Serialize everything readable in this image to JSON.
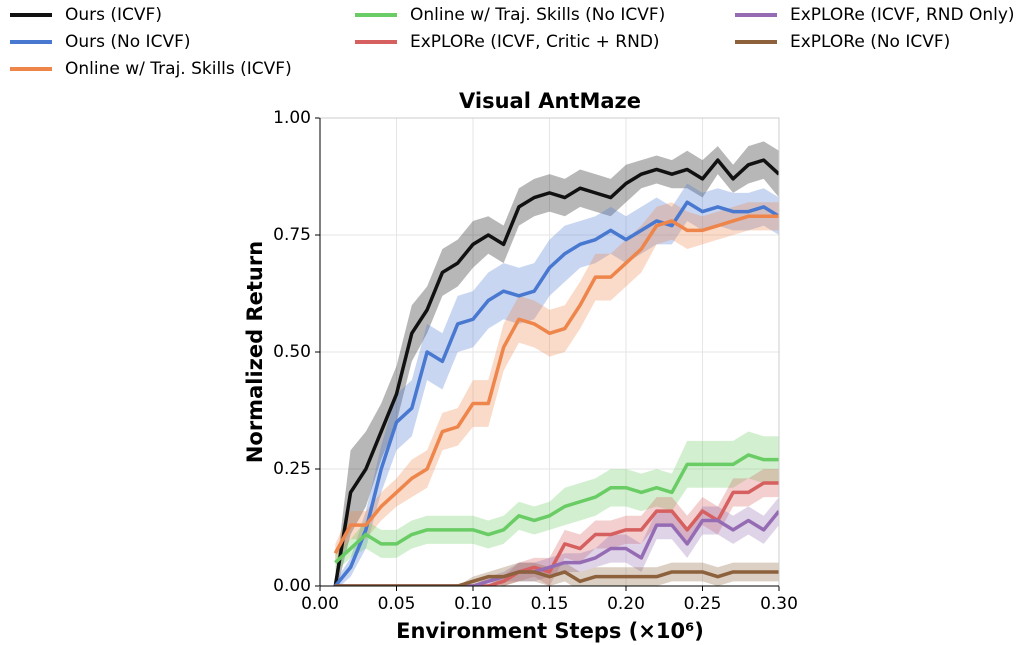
{
  "chart_data": {
    "type": "line",
    "title": "Visual AntMaze",
    "xlabel": "Environment Steps (×10⁶)",
    "ylabel": "Normalized Return",
    "x": [
      0.01,
      0.02,
      0.03,
      0.04,
      0.05,
      0.06,
      0.07,
      0.08,
      0.09,
      0.1,
      0.11,
      0.12,
      0.13,
      0.14,
      0.15,
      0.16,
      0.17,
      0.18,
      0.19,
      0.2,
      0.21,
      0.22,
      0.23,
      0.24,
      0.25,
      0.26,
      0.27,
      0.28,
      0.29,
      0.3
    ],
    "series": [
      {
        "name": "Ours (ICVF)",
        "color": "#111111",
        "values": [
          0.0,
          0.2,
          0.25,
          0.33,
          0.41,
          0.54,
          0.59,
          0.67,
          0.69,
          0.73,
          0.75,
          0.73,
          0.81,
          0.83,
          0.84,
          0.83,
          0.85,
          0.84,
          0.83,
          0.86,
          0.88,
          0.89,
          0.88,
          0.89,
          0.87,
          0.91,
          0.87,
          0.9,
          0.91,
          0.88
        ],
        "errors": [
          0.02,
          0.09,
          0.08,
          0.06,
          0.06,
          0.06,
          0.05,
          0.05,
          0.05,
          0.05,
          0.04,
          0.04,
          0.04,
          0.04,
          0.04,
          0.04,
          0.04,
          0.04,
          0.04,
          0.04,
          0.03,
          0.03,
          0.03,
          0.04,
          0.04,
          0.03,
          0.03,
          0.04,
          0.04,
          0.05
        ]
      },
      {
        "name": "Ours (No ICVF)",
        "color": "#4878d0",
        "values": [
          0.0,
          0.04,
          0.12,
          0.25,
          0.35,
          0.38,
          0.5,
          0.48,
          0.56,
          0.57,
          0.61,
          0.63,
          0.62,
          0.63,
          0.68,
          0.71,
          0.73,
          0.74,
          0.76,
          0.74,
          0.76,
          0.78,
          0.77,
          0.82,
          0.8,
          0.81,
          0.8,
          0.8,
          0.81,
          0.79
        ],
        "errors": [
          0.01,
          0.02,
          0.04,
          0.05,
          0.06,
          0.06,
          0.06,
          0.06,
          0.06,
          0.06,
          0.06,
          0.06,
          0.06,
          0.06,
          0.06,
          0.06,
          0.05,
          0.05,
          0.05,
          0.05,
          0.05,
          0.05,
          0.04,
          0.04,
          0.04,
          0.04,
          0.04,
          0.04,
          0.04,
          0.04
        ]
      },
      {
        "name": "Online w/ Traj. Skills (ICVF)",
        "color": "#ee854a",
        "values": [
          0.07,
          0.13,
          0.13,
          0.17,
          0.2,
          0.23,
          0.25,
          0.33,
          0.34,
          0.39,
          0.39,
          0.51,
          0.57,
          0.56,
          0.54,
          0.55,
          0.6,
          0.66,
          0.66,
          0.69,
          0.72,
          0.77,
          0.78,
          0.76,
          0.76,
          0.77,
          0.78,
          0.79,
          0.79,
          0.79
        ],
        "errors": [
          0.02,
          0.03,
          0.03,
          0.03,
          0.03,
          0.04,
          0.04,
          0.04,
          0.04,
          0.05,
          0.05,
          0.05,
          0.05,
          0.05,
          0.05,
          0.05,
          0.05,
          0.05,
          0.05,
          0.05,
          0.05,
          0.04,
          0.04,
          0.04,
          0.03,
          0.03,
          0.03,
          0.03,
          0.03,
          0.03
        ]
      },
      {
        "name": "Online w/ Traj. Skills (No ICVF)",
        "color": "#6acc64",
        "values": [
          0.05,
          0.08,
          0.11,
          0.09,
          0.09,
          0.11,
          0.12,
          0.12,
          0.12,
          0.12,
          0.11,
          0.12,
          0.15,
          0.14,
          0.15,
          0.17,
          0.18,
          0.19,
          0.21,
          0.21,
          0.2,
          0.21,
          0.2,
          0.26,
          0.26,
          0.26,
          0.26,
          0.28,
          0.27,
          0.27
        ],
        "errors": [
          0.02,
          0.02,
          0.03,
          0.03,
          0.03,
          0.03,
          0.03,
          0.03,
          0.03,
          0.03,
          0.03,
          0.03,
          0.03,
          0.03,
          0.03,
          0.04,
          0.04,
          0.04,
          0.04,
          0.04,
          0.04,
          0.04,
          0.04,
          0.05,
          0.05,
          0.05,
          0.05,
          0.05,
          0.05,
          0.05
        ]
      },
      {
        "name": "ExPLORe (ICVF, Critic + RND)",
        "color": "#d65f5f",
        "values": [
          0,
          0,
          0,
          0,
          0,
          0,
          0,
          0,
          0,
          0,
          0,
          0.01,
          0.03,
          0.04,
          0.03,
          0.09,
          0.08,
          0.11,
          0.11,
          0.12,
          0.12,
          0.16,
          0.16,
          0.12,
          0.16,
          0.14,
          0.2,
          0.2,
          0.22,
          0.22
        ],
        "errors": [
          0,
          0,
          0,
          0,
          0,
          0,
          0,
          0,
          0,
          0,
          0,
          0.01,
          0.02,
          0.02,
          0.03,
          0.03,
          0.03,
          0.03,
          0.03,
          0.03,
          0.03,
          0.03,
          0.03,
          0.03,
          0.03,
          0.03,
          0.03,
          0.03,
          0.03,
          0.03
        ]
      },
      {
        "name": "ExPLORe (ICVF, RND Only)",
        "color": "#956cb4",
        "values": [
          0,
          0,
          0,
          0,
          0,
          0,
          0,
          0,
          0,
          0,
          0.01,
          0.02,
          0.03,
          0.03,
          0.04,
          0.05,
          0.05,
          0.06,
          0.08,
          0.08,
          0.06,
          0.13,
          0.13,
          0.09,
          0.14,
          0.14,
          0.12,
          0.14,
          0.12,
          0.16
        ],
        "errors": [
          0,
          0,
          0,
          0,
          0,
          0,
          0,
          0,
          0,
          0,
          0.01,
          0.01,
          0.02,
          0.02,
          0.02,
          0.02,
          0.02,
          0.02,
          0.03,
          0.03,
          0.03,
          0.03,
          0.03,
          0.03,
          0.03,
          0.03,
          0.03,
          0.03,
          0.03,
          0.03
        ]
      },
      {
        "name": "ExPLORe (No ICVF)",
        "color": "#8c613c",
        "values": [
          0,
          0,
          0,
          0,
          0,
          0,
          0,
          0,
          0,
          0.01,
          0.02,
          0.02,
          0.03,
          0.03,
          0.02,
          0.03,
          0.01,
          0.02,
          0.02,
          0.02,
          0.02,
          0.02,
          0.03,
          0.03,
          0.03,
          0.02,
          0.03,
          0.03,
          0.03,
          0.03
        ],
        "errors": [
          0,
          0,
          0,
          0,
          0,
          0,
          0,
          0,
          0,
          0.01,
          0.01,
          0.02,
          0.02,
          0.02,
          0.02,
          0.02,
          0.02,
          0.02,
          0.02,
          0.02,
          0.02,
          0.02,
          0.02,
          0.02,
          0.02,
          0.02,
          0.02,
          0.02,
          0.02,
          0.02
        ]
      }
    ],
    "xlim": [
      0,
      0.3
    ],
    "xticks": [
      {
        "value": 0,
        "label": "0.00"
      },
      {
        "value": 0.05,
        "label": "0.05"
      },
      {
        "value": 0.1,
        "label": "0.10"
      },
      {
        "value": 0.15,
        "label": "0.15"
      },
      {
        "value": 0.2,
        "label": "0.20"
      },
      {
        "value": 0.25,
        "label": "0.25"
      },
      {
        "value": 0.3,
        "label": "0.30"
      }
    ],
    "ylim": [
      0,
      1
    ],
    "yticks": [
      {
        "value": 0,
        "label": "0.00"
      },
      {
        "value": 0.25,
        "label": "0.25"
      },
      {
        "value": 0.5,
        "label": "0.50"
      },
      {
        "value": 0.75,
        "label": "0.75"
      },
      {
        "value": 1,
        "label": "1.00"
      }
    ],
    "grid": true,
    "legend": "top"
  }
}
